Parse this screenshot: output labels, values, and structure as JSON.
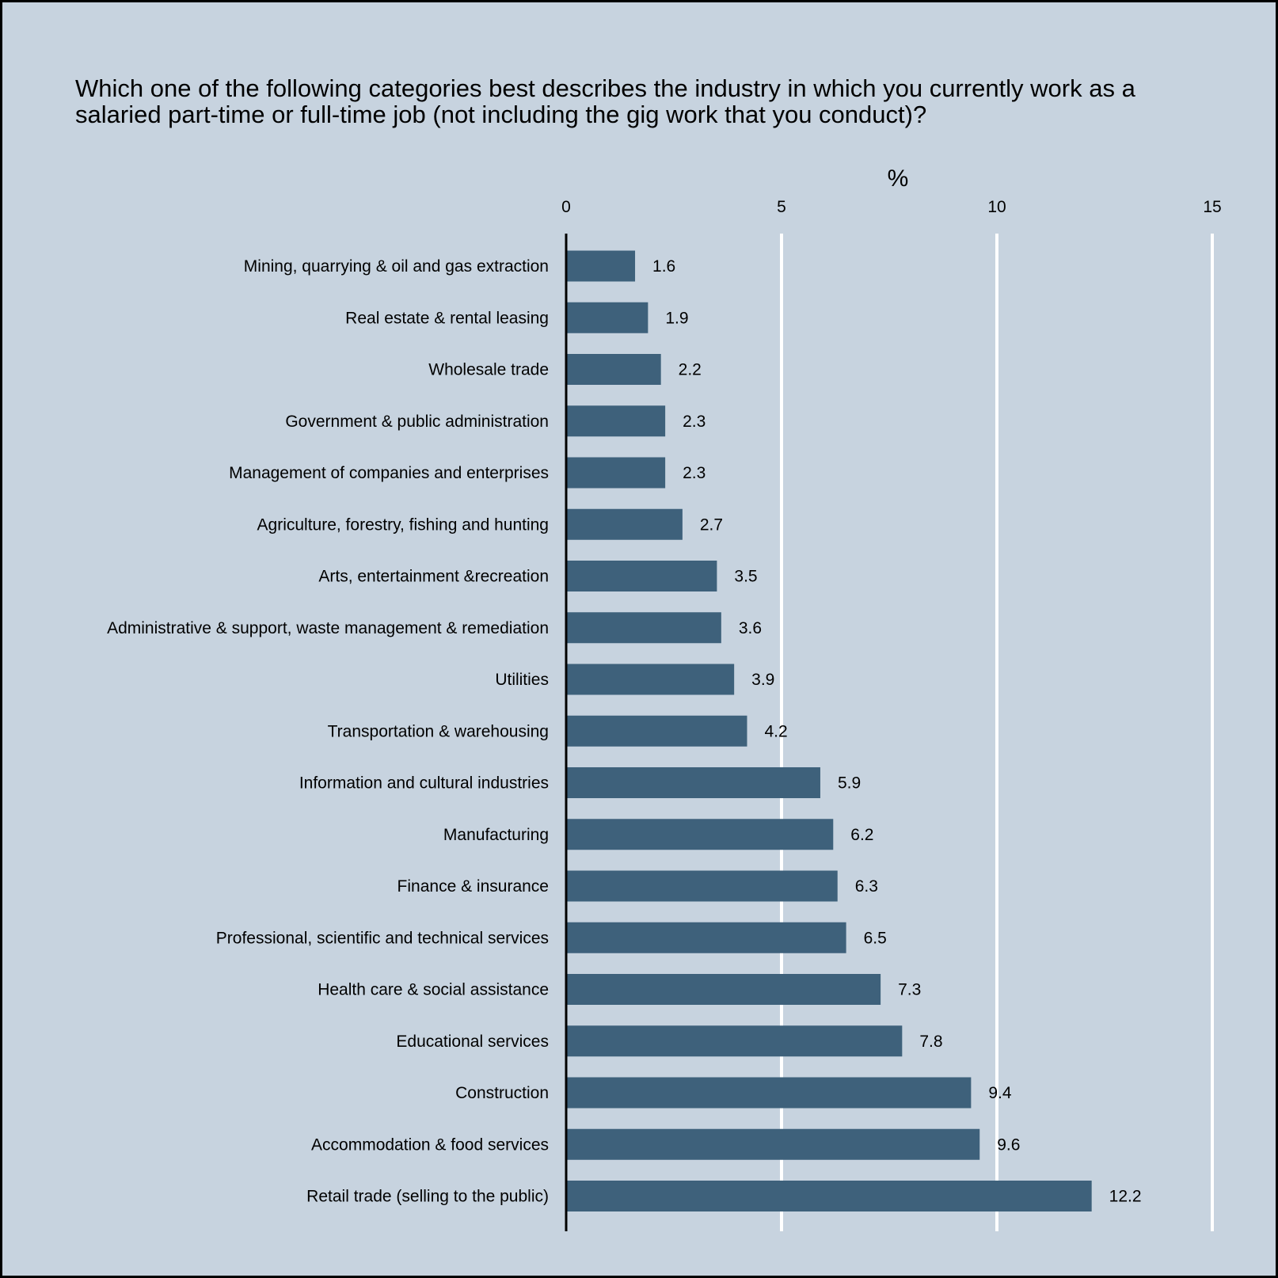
{
  "chart_data": {
    "type": "bar",
    "orientation": "horizontal",
    "title": "Which one of the following categories best describes the industry in which you currently work as a salaried part-time or full-time job (not including the gig work that you conduct)?",
    "xlabel": "%",
    "xlim": [
      0,
      15
    ],
    "xticks": [
      0,
      5,
      10,
      15
    ],
    "grid": true,
    "bar_color": "#3e617b",
    "background_color": "#c7d3df",
    "gridline_color": "#ffffff",
    "categories": [
      "Mining, quarrying & oil and gas extraction",
      "Real estate & rental leasing",
      "Wholesale trade",
      "Government & public administration",
      "Management of companies and enterprises",
      "Agriculture, forestry, fishing and hunting",
      "Arts, entertainment &recreation",
      "Administrative & support, waste management & remediation",
      "Utilities",
      "Transportation & warehousing",
      "Information and cultural industries",
      "Manufacturing",
      "Finance & insurance",
      "Professional, scientific and technical services",
      "Health care & social assistance",
      "Educational services",
      "Construction",
      "Accommodation & food services",
      "Retail trade (selling to the public)"
    ],
    "values": [
      1.6,
      1.9,
      2.2,
      2.3,
      2.3,
      2.7,
      3.5,
      3.6,
      3.9,
      4.2,
      5.9,
      6.2,
      6.3,
      6.5,
      7.3,
      7.8,
      9.4,
      9.6,
      12.2
    ],
    "data_labels": [
      "1.6",
      "1.9",
      "2.2",
      "2.3",
      "2.3",
      "2.7",
      "3.5",
      "3.6",
      "3.9",
      "4.2",
      "5.9",
      "6.2",
      "6.3",
      "6.5",
      "7.3",
      "7.8",
      "9.4",
      "9.6",
      "12.2"
    ]
  }
}
